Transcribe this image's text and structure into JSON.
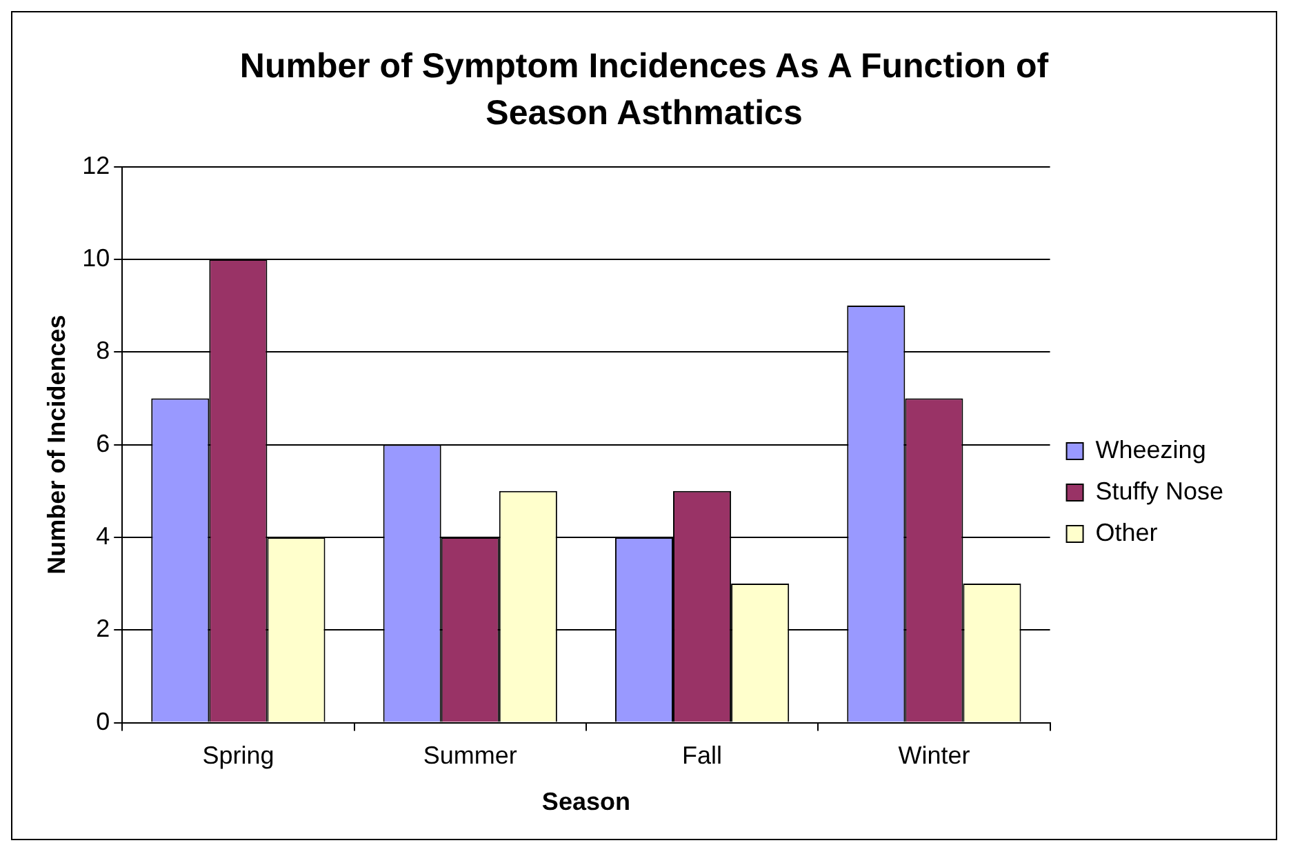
{
  "chart_data": {
    "type": "bar",
    "title": "Number of Symptom Incidences As A Function of Season Asthmatics",
    "xlabel": "Season",
    "ylabel": "Number of Incidences",
    "categories": [
      "Spring",
      "Summer",
      "Fall",
      "Winter"
    ],
    "series": [
      {
        "name": "Wheezing",
        "color": "#9999ff",
        "values": [
          7,
          6,
          4,
          9
        ]
      },
      {
        "name": "Stuffy Nose",
        "color": "#993366",
        "values": [
          10,
          4,
          5,
          7
        ]
      },
      {
        "name": "Other",
        "color": "#ffffcc",
        "values": [
          4,
          5,
          3,
          3
        ]
      }
    ],
    "ylim": [
      0,
      12
    ],
    "yticks": [
      0,
      2,
      4,
      6,
      8,
      10,
      12
    ],
    "grid": "y",
    "legend": "right"
  }
}
